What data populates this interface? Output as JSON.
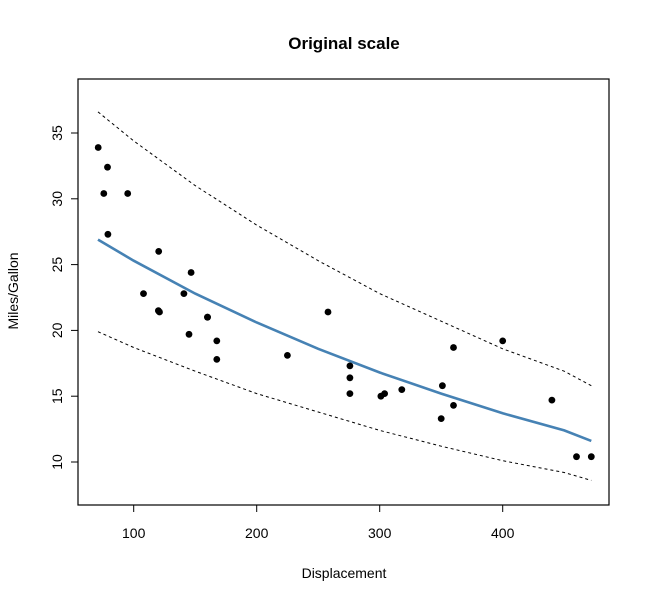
{
  "chart_data": {
    "type": "scatter",
    "title": "Original scale",
    "xlabel": "Displacement",
    "ylabel": "Miles/Gallon",
    "xlim": [
      55,
      490
    ],
    "ylim": [
      6.8,
      38.2
    ],
    "xticks": [
      100,
      200,
      300,
      400
    ],
    "yticks": [
      10,
      15,
      20,
      25,
      30,
      35
    ],
    "grid": false,
    "legend": null,
    "colors": {
      "points": "#000000",
      "fit": "#4682B4",
      "interval": "#000000"
    },
    "series": [
      {
        "name": "observations",
        "type": "scatter",
        "points": [
          [
            160,
            21.0
          ],
          [
            160,
            21.0
          ],
          [
            108,
            22.8
          ],
          [
            258,
            21.4
          ],
          [
            360,
            18.7
          ],
          [
            225,
            18.1
          ],
          [
            360,
            14.3
          ],
          [
            146.7,
            24.4
          ],
          [
            140.8,
            22.8
          ],
          [
            167.6,
            19.2
          ],
          [
            167.6,
            17.8
          ],
          [
            275.8,
            16.4
          ],
          [
            275.8,
            17.3
          ],
          [
            275.8,
            15.2
          ],
          [
            472,
            10.4
          ],
          [
            460,
            10.4
          ],
          [
            440,
            14.7
          ],
          [
            78.7,
            32.4
          ],
          [
            75.7,
            30.4
          ],
          [
            71.1,
            33.9
          ],
          [
            120.1,
            21.5
          ],
          [
            318,
            15.5
          ],
          [
            304,
            15.2
          ],
          [
            350,
            13.3
          ],
          [
            400,
            19.2
          ],
          [
            79,
            27.3
          ],
          [
            120.3,
            26.0
          ],
          [
            95.1,
            30.4
          ],
          [
            351,
            15.8
          ],
          [
            145,
            19.7
          ],
          [
            301,
            15.0
          ],
          [
            121,
            21.4
          ]
        ]
      },
      {
        "name": "fitted curve",
        "type": "line",
        "style": "solid",
        "points": [
          [
            71,
            26.9
          ],
          [
            100,
            25.3
          ],
          [
            150,
            22.8
          ],
          [
            200,
            20.6
          ],
          [
            250,
            18.6
          ],
          [
            300,
            16.8
          ],
          [
            350,
            15.2
          ],
          [
            400,
            13.7
          ],
          [
            450,
            12.4
          ],
          [
            472,
            11.6
          ]
        ]
      },
      {
        "name": "upper interval",
        "type": "line",
        "style": "dashed",
        "points": [
          [
            71,
            36.6
          ],
          [
            100,
            34.4
          ],
          [
            150,
            31.0
          ],
          [
            200,
            28.0
          ],
          [
            250,
            25.3
          ],
          [
            300,
            22.8
          ],
          [
            350,
            20.7
          ],
          [
            400,
            18.6
          ],
          [
            450,
            16.9
          ],
          [
            472,
            15.8
          ]
        ]
      },
      {
        "name": "lower interval",
        "type": "line",
        "style": "dashed",
        "points": [
          [
            71,
            19.9
          ],
          [
            100,
            18.7
          ],
          [
            150,
            16.9
          ],
          [
            200,
            15.2
          ],
          [
            250,
            13.8
          ],
          [
            300,
            12.4
          ],
          [
            350,
            11.2
          ],
          [
            400,
            10.1
          ],
          [
            450,
            9.2
          ],
          [
            472,
            8.6
          ]
        ]
      }
    ]
  }
}
